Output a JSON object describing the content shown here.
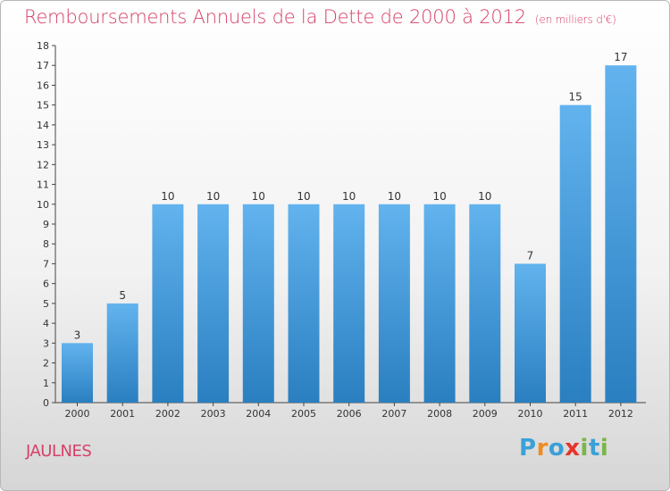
{
  "title": "Remboursements Annuels de la Dette de 2000 à 2012",
  "unit": "(en milliers d'€)",
  "place": "JAULNES",
  "logo": {
    "text": "Proxiti",
    "letters": [
      "P",
      "r",
      "o",
      "x",
      "i",
      "t",
      "i"
    ],
    "colors": [
      "#3aa0d8",
      "#f08c1e",
      "#3aa0d8",
      "#e8332a",
      "#7ab648",
      "#3aa0d8",
      "#7ab648"
    ]
  },
  "colors": {
    "bar_top": "#62b3ee",
    "bar_bottom": "#2a7fc0",
    "title": "#d64067"
  },
  "chart_data": {
    "type": "bar",
    "categories": [
      "2000",
      "2001",
      "2002",
      "2003",
      "2004",
      "2005",
      "2006",
      "2007",
      "2008",
      "2009",
      "2010",
      "2011",
      "2012"
    ],
    "values": [
      3,
      5,
      10,
      10,
      10,
      10,
      10,
      10,
      10,
      10,
      7,
      15,
      17
    ],
    "labels": [
      "3",
      "5",
      "10",
      "10",
      "10",
      "10",
      "10",
      "10",
      "10",
      "10",
      "7",
      "15",
      "17"
    ],
    "yticks": [
      "0",
      "1",
      "2",
      "3",
      "4",
      "5",
      "6",
      "7",
      "8",
      "9",
      "10",
      "11",
      "12",
      "13",
      "14",
      "15",
      "16",
      "17",
      "18"
    ],
    "ylim": [
      0,
      18
    ],
    "grid": false
  }
}
